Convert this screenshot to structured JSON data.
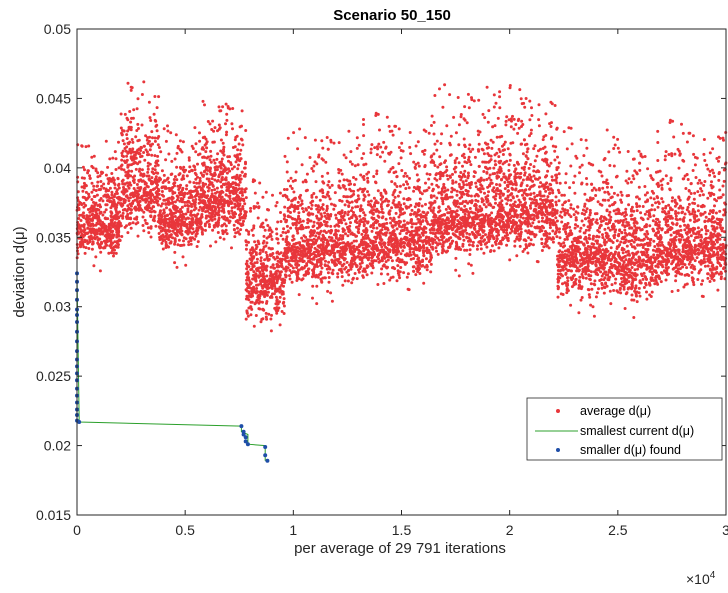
{
  "chart_data": {
    "type": "scatter",
    "title": "Scenario 50_150",
    "xlabel": "per average of 29 791 iterations",
    "ylabel": "deviation d(μ)",
    "x_multiplier_label": "×10",
    "x_multiplier_exponent": "4",
    "xlim": [
      0,
      3
    ],
    "ylim": [
      0.015,
      0.05
    ],
    "xticks": [
      0,
      0.5,
      1,
      1.5,
      2,
      2.5,
      3
    ],
    "xtick_labels": [
      "0",
      "0.5",
      "1",
      "1.5",
      "2",
      "2.5",
      "3"
    ],
    "yticks": [
      0.015,
      0.02,
      0.025,
      0.03,
      0.035,
      0.04,
      0.045,
      0.05
    ],
    "ytick_labels": [
      "0.015",
      "0.02",
      "0.025",
      "0.03",
      "0.035",
      "0.04",
      "0.045",
      "0.05"
    ],
    "legend_position": "lower-right",
    "average_segments": [
      {
        "x": [
          0.0,
          0.2
        ],
        "mean": 0.036,
        "spread_low": 0.003,
        "spread_high": 0.005
      },
      {
        "x": [
          0.2,
          0.38
        ],
        "mean": 0.0385,
        "spread_low": 0.0035,
        "spread_high": 0.0065
      },
      {
        "x": [
          0.38,
          0.58
        ],
        "mean": 0.0365,
        "spread_low": 0.003,
        "spread_high": 0.0055
      },
      {
        "x": [
          0.58,
          0.78
        ],
        "mean": 0.038,
        "spread_low": 0.0035,
        "spread_high": 0.006
      },
      {
        "x": [
          0.78,
          0.96
        ],
        "mean": 0.032,
        "spread_low": 0.0035,
        "spread_high": 0.006
      },
      {
        "x": [
          0.96,
          1.32
        ],
        "mean": 0.0345,
        "spread_low": 0.0035,
        "spread_high": 0.007
      },
      {
        "x": [
          1.32,
          1.64
        ],
        "mean": 0.035,
        "spread_low": 0.0035,
        "spread_high": 0.0075
      },
      {
        "x": [
          1.64,
          1.95
        ],
        "mean": 0.0365,
        "spread_low": 0.0035,
        "spread_high": 0.008
      },
      {
        "x": [
          1.95,
          2.22
        ],
        "mean": 0.037,
        "spread_low": 0.0035,
        "spread_high": 0.0075
      },
      {
        "x": [
          2.22,
          2.5
        ],
        "mean": 0.034,
        "spread_low": 0.004,
        "spread_high": 0.0075
      },
      {
        "x": [
          2.5,
          2.68
        ],
        "mean": 0.0335,
        "spread_low": 0.0035,
        "spread_high": 0.007
      },
      {
        "x": [
          2.68,
          3.0
        ],
        "mean": 0.0345,
        "spread_low": 0.0035,
        "spread_high": 0.0075
      }
    ],
    "series": [
      {
        "name": "smallest current d(μ)",
        "style": "line",
        "color": "#2ca02c",
        "x": [
          0,
          0.01,
          0.01,
          0.76,
          0.76,
          0.79,
          0.79,
          0.87,
          0.87
        ],
        "y": [
          0.0324,
          0.0217,
          0.0217,
          0.0214,
          0.021,
          0.0208,
          0.0201,
          0.02,
          0.0189
        ]
      },
      {
        "name": "smaller d(μ) found",
        "style": "markers",
        "color": "#1f4ea8",
        "x": [
          0,
          0,
          0,
          0,
          0,
          0,
          0,
          0,
          0,
          0,
          0,
          0,
          0,
          0,
          0,
          0,
          0,
          0,
          0,
          0,
          0.01,
          0.76,
          0.77,
          0.77,
          0.78,
          0.78,
          0.79,
          0.87,
          0.87,
          0.88
        ],
        "y": [
          0.0324,
          0.0318,
          0.0312,
          0.0305,
          0.0298,
          0.0294,
          0.0289,
          0.0282,
          0.0275,
          0.0268,
          0.0262,
          0.0257,
          0.0252,
          0.0247,
          0.0241,
          0.0236,
          0.0231,
          0.0226,
          0.0222,
          0.0218,
          0.0217,
          0.0214,
          0.021,
          0.0208,
          0.0206,
          0.0203,
          0.0201,
          0.0199,
          0.0193,
          0.0189
        ]
      },
      {
        "name": "average d(μ)",
        "style": "markers",
        "color": "#e8363b"
      }
    ]
  }
}
